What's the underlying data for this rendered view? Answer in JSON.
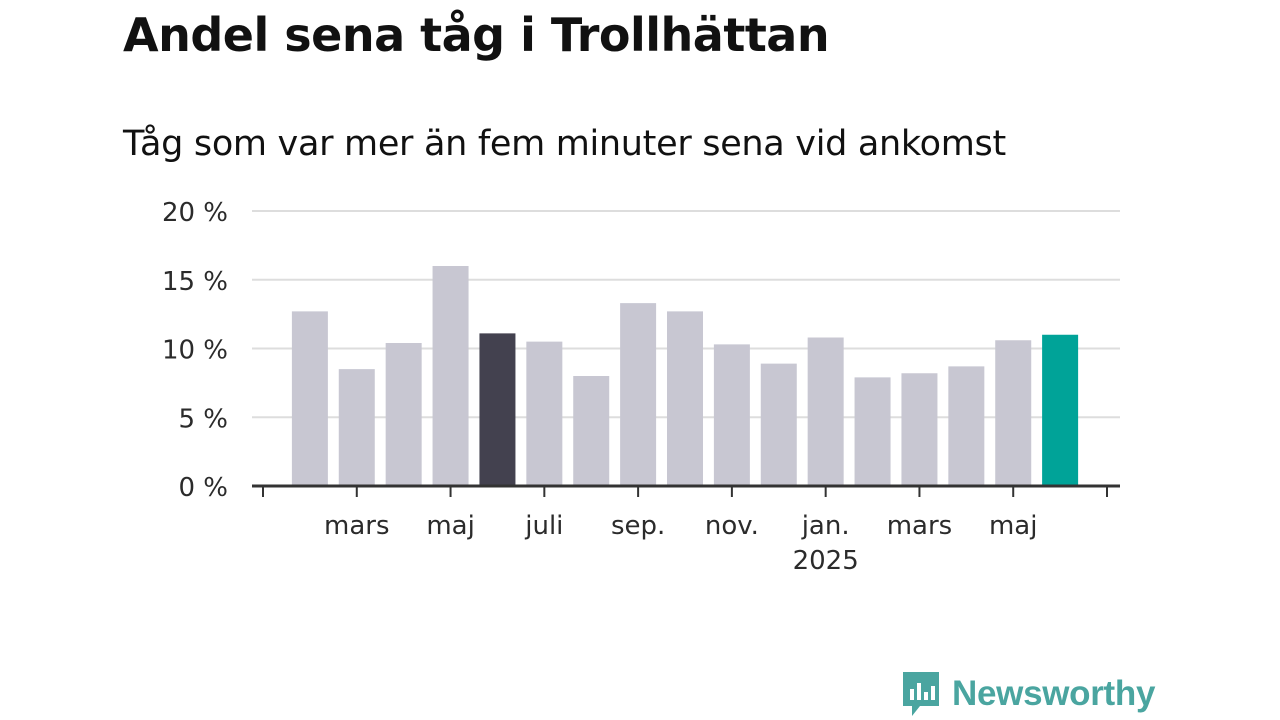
{
  "chart_data": {
    "type": "bar",
    "title": "Andel sena tåg i Trollhättan",
    "subtitle": "Tåg som var mer än fem minuter sena vid ankomst",
    "categories": [
      "2024-02",
      "2024-03",
      "2024-04",
      "2024-05",
      "2024-06",
      "2024-07",
      "2024-08",
      "2024-09",
      "2024-10",
      "2024-11",
      "2024-12",
      "2025-01",
      "2025-02",
      "2025-03",
      "2025-04",
      "2025-05",
      "2025-06"
    ],
    "values": [
      12.7,
      8.5,
      10.4,
      16.0,
      11.1,
      10.5,
      8.0,
      13.3,
      12.7,
      10.3,
      8.9,
      10.8,
      7.9,
      8.2,
      8.7,
      10.6,
      11.0
    ],
    "ylim": [
      0,
      20
    ],
    "yticks": [
      0,
      5,
      10,
      15,
      20
    ],
    "ytick_labels": [
      "0 %",
      "5 %",
      "10 %",
      "15 %",
      "20 %"
    ],
    "xtick_labels": [
      "mars",
      "maj",
      "juli",
      "sep.",
      "nov.",
      "jan.",
      "mars",
      "maj"
    ],
    "xtick_year_label": "2025",
    "grid": true,
    "colors": {
      "default": "#c8c7d2",
      "highlight_dark": "#43414f",
      "highlight_current": "#00a398"
    },
    "highlighted": {
      "4": "highlight_dark",
      "16": "highlight_current"
    }
  },
  "brand": {
    "name": "Newsworthy",
    "icon": "newsworthy-logo-icon",
    "color": "#4aa5a0"
  }
}
